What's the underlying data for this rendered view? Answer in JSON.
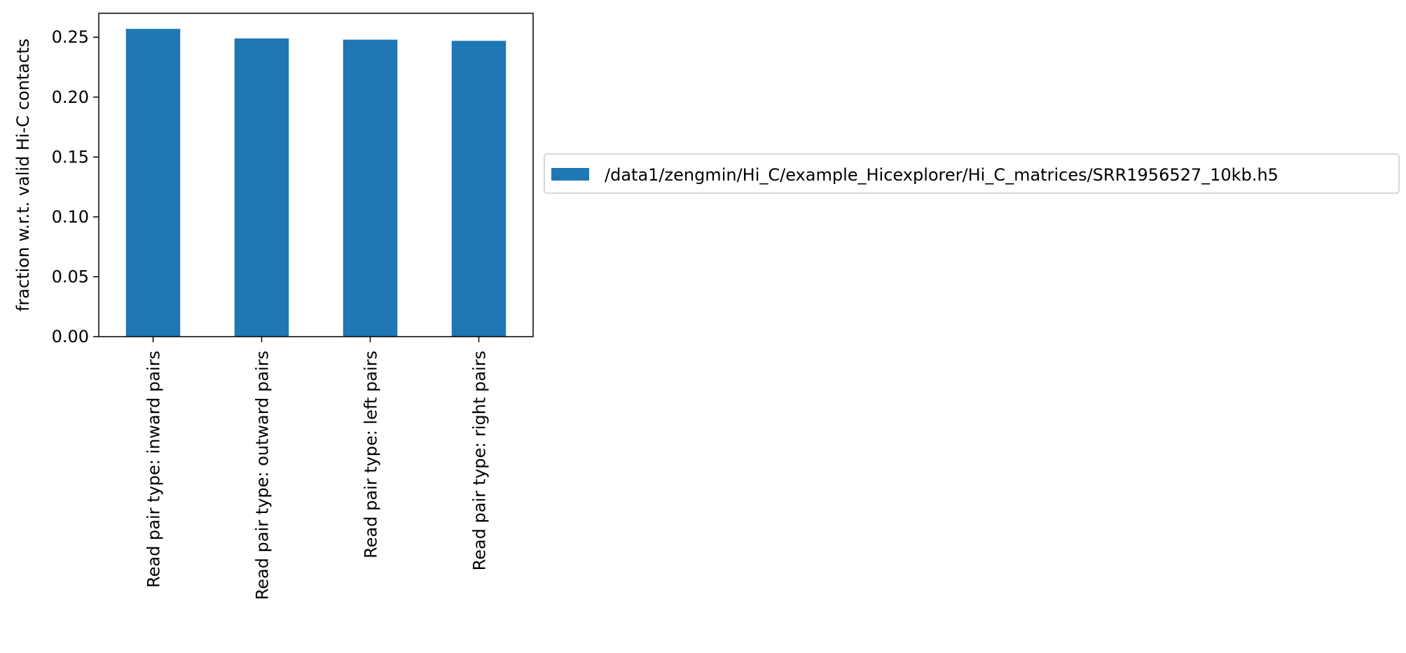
{
  "chart_data": {
    "type": "bar",
    "categories": [
      "Read pair type: inward pairs",
      "Read pair type: outward pairs",
      "Read pair type: left pairs",
      "Read pair type: right pairs"
    ],
    "series": [
      {
        "name": "/data1/zengmin/Hi_C/example_Hicexplorer/Hi_C_matrices/SRR1956527_10kb.h5",
        "values": [
          0.257,
          0.249,
          0.248,
          0.247
        ],
        "color": "#1f77b4"
      }
    ],
    "title": "",
    "xlabel": "",
    "ylabel": "fraction w.r.t. valid Hi-C contacts",
    "ylim": [
      0,
      0.27
    ],
    "yticks": [
      "0.00",
      "0.05",
      "0.10",
      "0.15",
      "0.20",
      "0.25"
    ],
    "grid": false,
    "legend_position": "right"
  }
}
